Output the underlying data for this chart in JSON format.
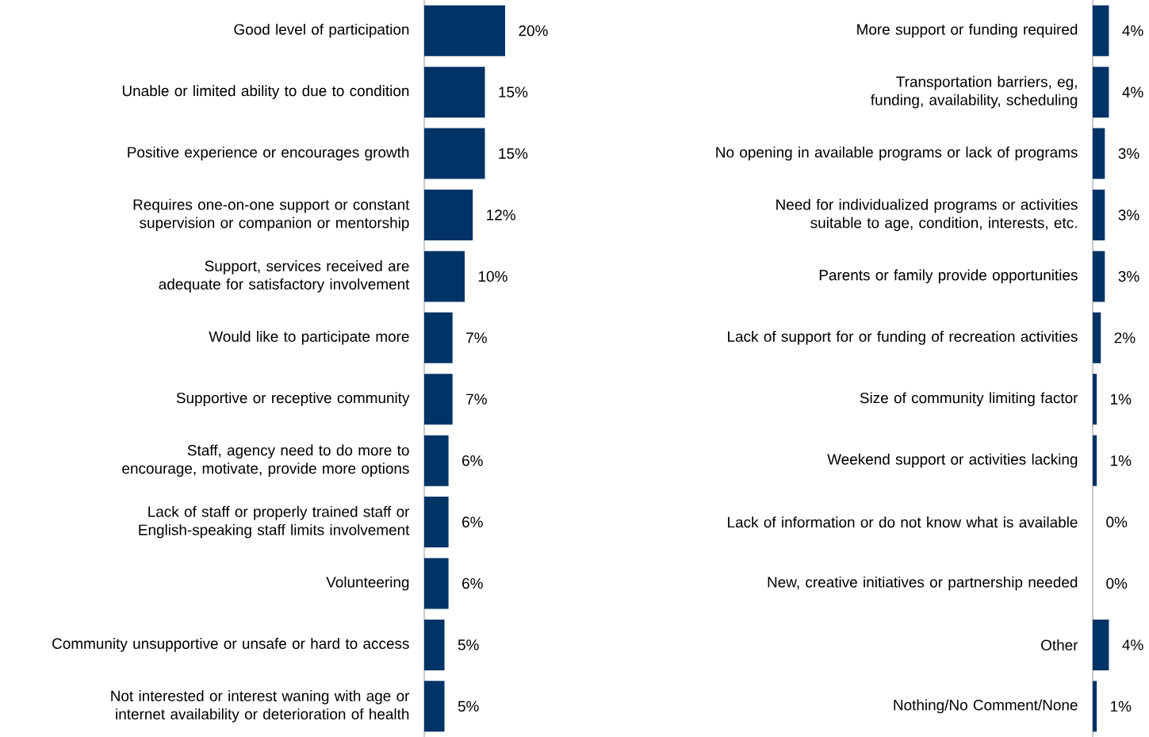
{
  "chart_data": [
    {
      "type": "bar",
      "orientation": "horizontal",
      "color": "#003366",
      "categories": [
        "Good level of participation",
        "Unable or limited ability to due to condition",
        "Positive experience or encourages growth",
        "Requires one-on-one support or constant supervision or companion or mentorship",
        "Support, services received are adequate for satisfactory involvement",
        "Would like to participate more",
        "Supportive or receptive community",
        "Staff, agency need to do more to encourage, motivate, provide more options",
        "Lack of staff or properly trained staff or English-speaking staff limits involvement",
        "Volunteering",
        "Community unsupportive or unsafe or hard to access",
        "Not interested or interest waning with age or internet availability or deterioration of health"
      ],
      "values": [
        20,
        15,
        15,
        12,
        10,
        7,
        7,
        6,
        6,
        6,
        5,
        5
      ],
      "value_labels": [
        "20%",
        "15%",
        "15%",
        "12%",
        "10%",
        "7%",
        "7%",
        "6%",
        "6%",
        "6%",
        "5%",
        "5%"
      ]
    },
    {
      "type": "bar",
      "orientation": "horizontal",
      "color": "#003366",
      "categories": [
        "More support or funding required",
        "Transportation barriers, eg, funding, availability, scheduling",
        "No opening in available programs or lack of programs",
        "Need for individualized programs or activities suitable to age, condition, interests, etc.",
        "Parents or family provide opportunities",
        "Lack of support for or funding of recreation activities",
        "Size of community limiting factor",
        "Weekend support or activities lacking",
        "Lack of information or do not know what is available",
        "New, creative initiatives or partnership needed",
        "Other",
        "Nothing/No Comment/None"
      ],
      "values": [
        4,
        4,
        3,
        3,
        3,
        2,
        1,
        1,
        0,
        0,
        4,
        1
      ],
      "value_labels": [
        "4%",
        "4%",
        "3%",
        "3%",
        "3%",
        "2%",
        "1%",
        "1%",
        "0%",
        "0%",
        "4%",
        "1%"
      ]
    }
  ]
}
